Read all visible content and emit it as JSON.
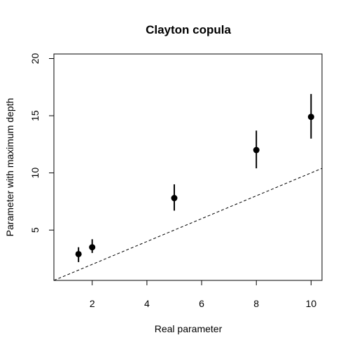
{
  "chart_data": {
    "type": "scatter",
    "title": "Clayton copula",
    "xlabel": "Real parameter",
    "ylabel": "Parameter with maximum depth",
    "xlim": [
      0.6,
      10.4
    ],
    "ylim": [
      0.6,
      20.4
    ],
    "x_ticks": [
      2,
      4,
      6,
      8,
      10
    ],
    "y_ticks": [
      5,
      10,
      15,
      20
    ],
    "grid": false,
    "points": [
      {
        "x": 1.5,
        "y": 2.9,
        "y_low": 2.2,
        "y_high": 3.5
      },
      {
        "x": 2,
        "y": 3.5,
        "y_low": 3.0,
        "y_high": 4.2
      },
      {
        "x": 5,
        "y": 7.8,
        "y_low": 6.7,
        "y_high": 9.0
      },
      {
        "x": 8,
        "y": 12.0,
        "y_low": 10.4,
        "y_high": 13.7
      },
      {
        "x": 10,
        "y": 14.9,
        "y_low": 13.0,
        "y_high": 16.9
      }
    ],
    "reference_line": {
      "style": "dashed",
      "slope": 1,
      "intercept": 0
    }
  }
}
